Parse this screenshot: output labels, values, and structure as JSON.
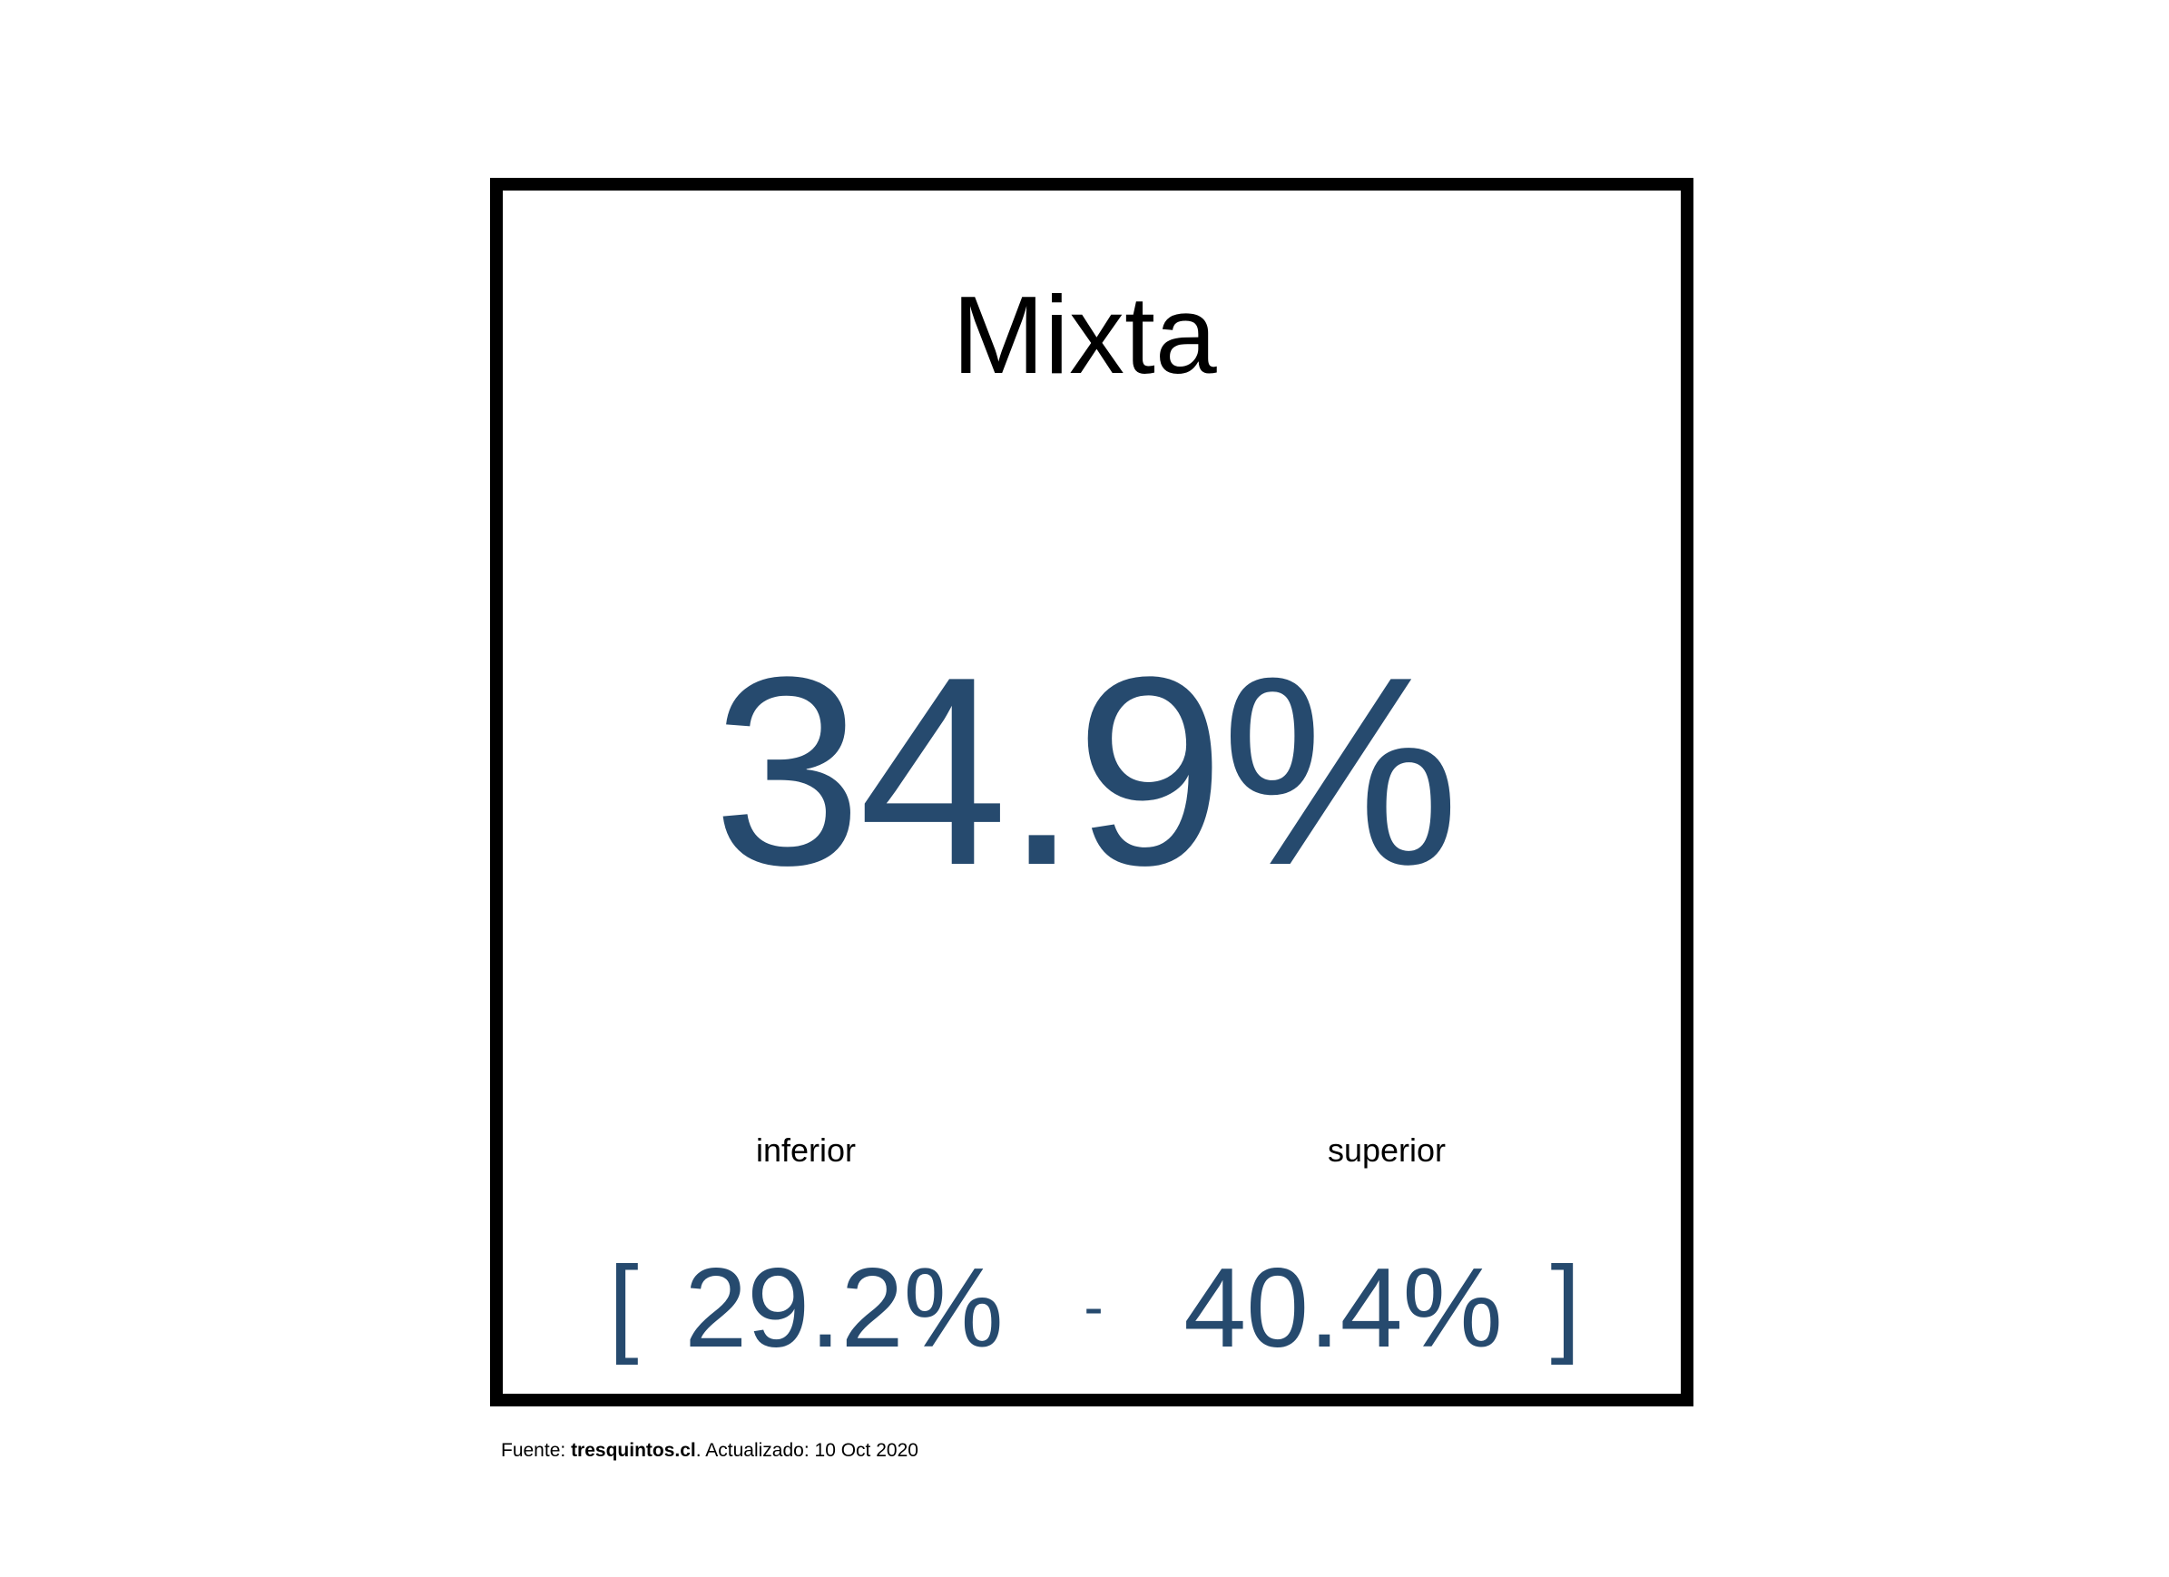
{
  "card": {
    "title": "Mixta",
    "value": "34.9%",
    "lower_label": "inferior",
    "upper_label": "superior",
    "bracket_open": "[",
    "lower_value": "29.2%",
    "separator": "-",
    "upper_value": "40.4%",
    "bracket_close": "]"
  },
  "footer": {
    "prefix": "Fuente: ",
    "source": "tresquintos.cl",
    "suffix": ". Actualizado: 10 Oct 2020"
  },
  "colors": {
    "value": "#264a6e",
    "border": "#000000",
    "background": "#ffffff"
  }
}
